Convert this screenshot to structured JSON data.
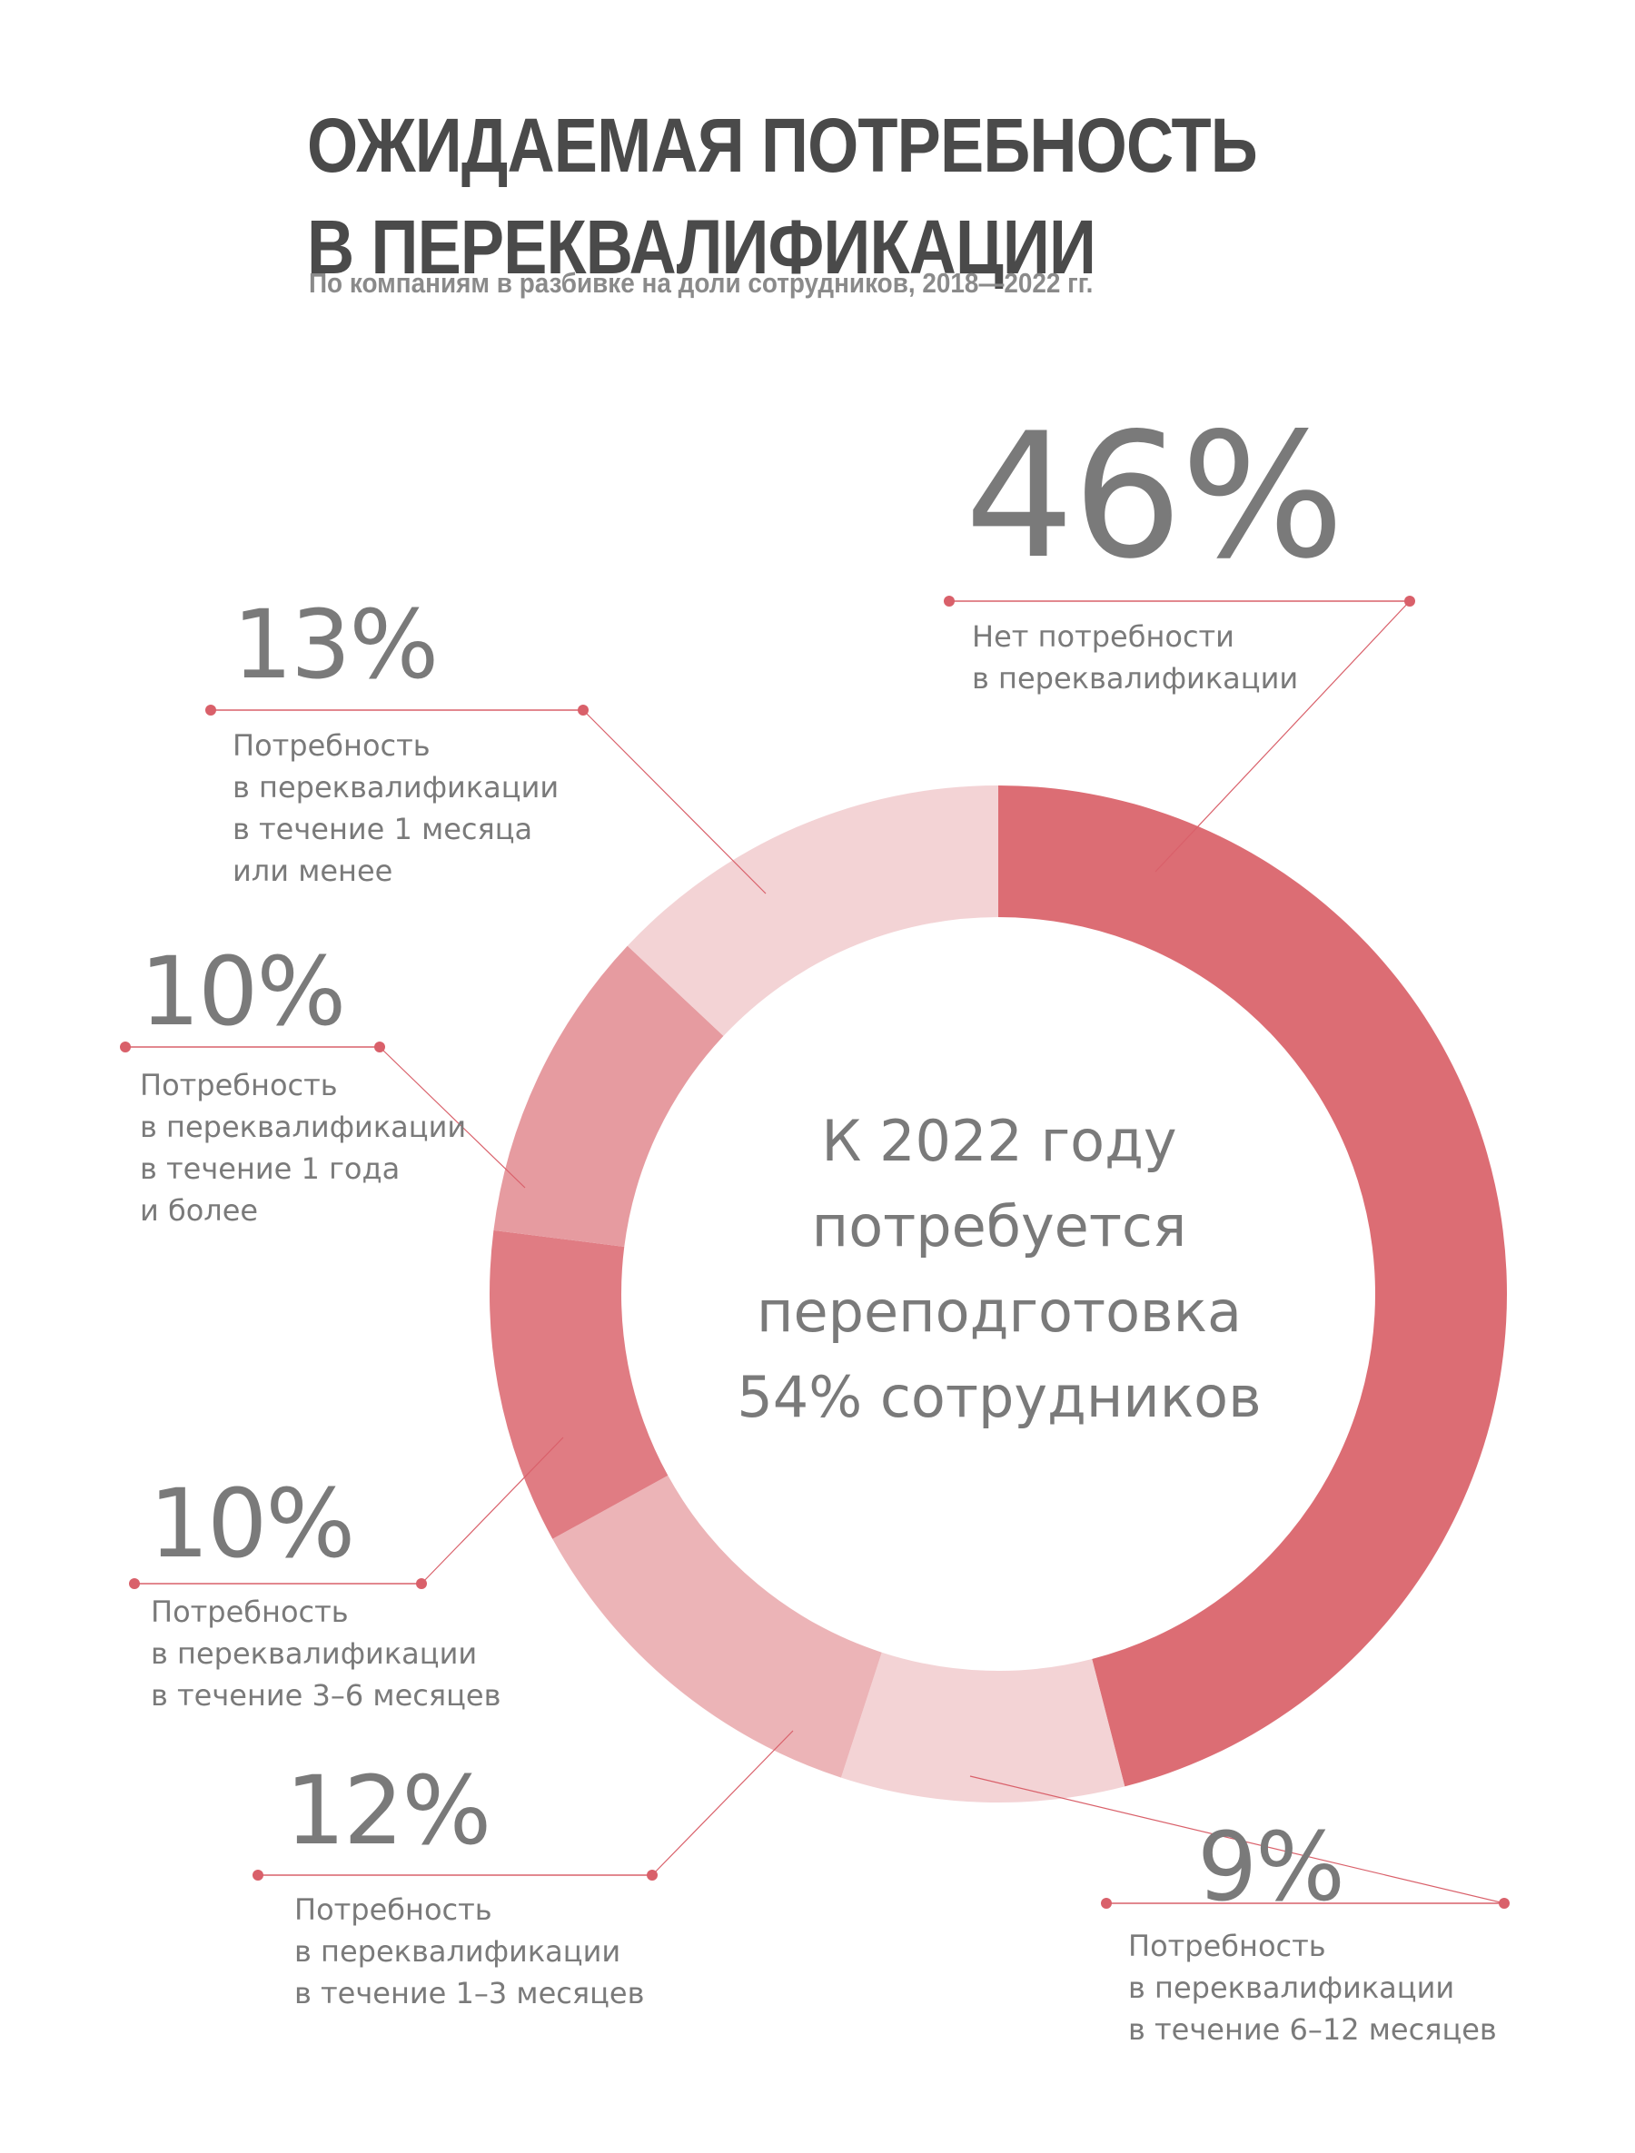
{
  "header": {
    "title_line1": "ОЖИДАЕМАЯ ПОТРЕБНОСТЬ",
    "title_line2": "В ПЕРЕКВАЛИФИКАЦИИ",
    "subtitle": "По компаниям в разбивке на доли сотрудников, 2018—2022 гг."
  },
  "center_text": {
    "line1": "К 2022 году",
    "line2": "потребуется",
    "line3": "переподготовка",
    "line4": "54% сотрудников"
  },
  "labels": [
    {
      "pct": "46%",
      "desc": "Нет потребности\nв переквалификации"
    },
    {
      "pct": "9%",
      "desc": "Потребность\nв переквалификации\nв течение 6–12 месяцев"
    },
    {
      "pct": "12%",
      "desc": "Потребность\nв переквалификации\nв течение 1–3 месяцев"
    },
    {
      "pct": "10%",
      "desc": "Потребность\nв переквалификации\nв течение 3–6 месяцев"
    },
    {
      "pct": "10%",
      "desc": "Потребность\nв переквалификации\nв течение 1 года\nи более"
    },
    {
      "pct": "13%",
      "desc": "Потребность\nв переквалификации\nв течение 1 месяца\nили менее"
    }
  ],
  "colors": {
    "accent": "#dc6d74",
    "text": "#7a7a7a",
    "title": "#4a4a4a",
    "line": "#d9606a"
  },
  "chart_data": {
    "type": "pie",
    "variant": "donut",
    "title": "ОЖИДАЕМАЯ ПОТРЕБНОСТЬ В ПЕРЕКВАЛИФИКАЦИИ",
    "subtitle": "По компаниям в разбивке на доли сотрудников, 2018—2022 гг.",
    "center_annotation": "К 2022 году потребуется переподготовка 54% сотрудников",
    "categories": [
      "Нет потребности в переквалификации",
      "Потребность в переквалификации в течение 6–12 месяцев",
      "Потребность в переквалификации в течение 1–3 месяцев",
      "Потребность в переквалификации в течение 3–6 месяцев",
      "Потребность в переквалификации в течение 1 года и более",
      "Потребность в переквалификации в течение 1 месяца или менее"
    ],
    "values": [
      46,
      9,
      12,
      10,
      10,
      13
    ],
    "unit": "%",
    "slice_colors": [
      "#dc6d74",
      "#f3d3d5",
      "#ecb4b7",
      "#e07c83",
      "#e69ba0",
      "#f3d3d5"
    ],
    "start_angle": "12 o'clock",
    "direction": "clockwise",
    "legend": "callout labels with leader lines"
  }
}
